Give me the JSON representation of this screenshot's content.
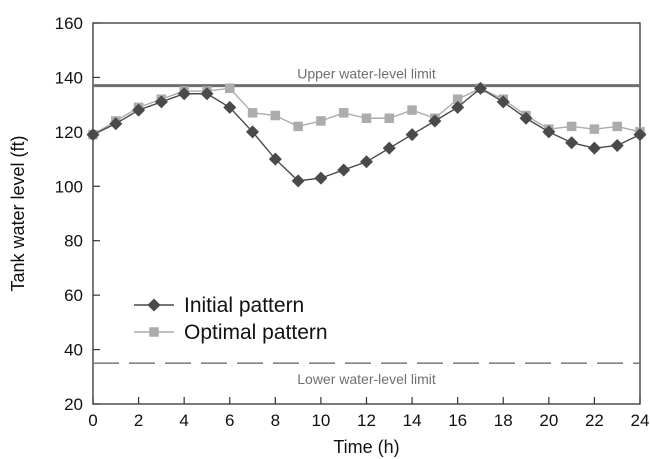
{
  "chart_data": {
    "type": "line",
    "xlabel": "Time (h)",
    "ylabel": "Tank water level (ft)",
    "xlim": [
      0,
      24
    ],
    "ylim": [
      20,
      160
    ],
    "xticks": [
      0,
      2,
      4,
      6,
      8,
      10,
      12,
      14,
      16,
      18,
      20,
      22,
      24
    ],
    "yticks": [
      20,
      40,
      60,
      80,
      100,
      120,
      140,
      160
    ],
    "grid": false,
    "legend_position": "lower-left",
    "reference_lines": [
      {
        "label": "Upper water-level limit",
        "y": 137,
        "style": "solid",
        "color": "#6e6e6e"
      },
      {
        "label": "Lower water-level limit",
        "y": 35,
        "style": "dashed",
        "color": "#6e6e6e"
      }
    ],
    "series": [
      {
        "name": "Initial pattern",
        "marker": "diamond",
        "color": "#4a4a4a",
        "x": [
          0,
          1,
          2,
          3,
          4,
          5,
          6,
          7,
          8,
          9,
          10,
          11,
          12,
          13,
          14,
          15,
          16,
          17,
          18,
          19,
          20,
          21,
          22,
          23,
          24
        ],
        "values": [
          119,
          123,
          128,
          131,
          134,
          134,
          129,
          120,
          110,
          102,
          103,
          106,
          109,
          114,
          119,
          124,
          129,
          136,
          131,
          125,
          120,
          116,
          114,
          115,
          119
        ]
      },
      {
        "name": "Optimal pattern",
        "marker": "square",
        "color": "#acacac",
        "x": [
          0,
          1,
          2,
          3,
          4,
          5,
          6,
          7,
          8,
          9,
          10,
          11,
          12,
          13,
          14,
          15,
          16,
          17,
          18,
          19,
          20,
          21,
          22,
          23,
          24
        ],
        "values": [
          119,
          124,
          129,
          132,
          135,
          135,
          136,
          127,
          126,
          122,
          124,
          127,
          125,
          125,
          128,
          125,
          132,
          136,
          132,
          126,
          121,
          122,
          121,
          122,
          120
        ]
      }
    ]
  }
}
